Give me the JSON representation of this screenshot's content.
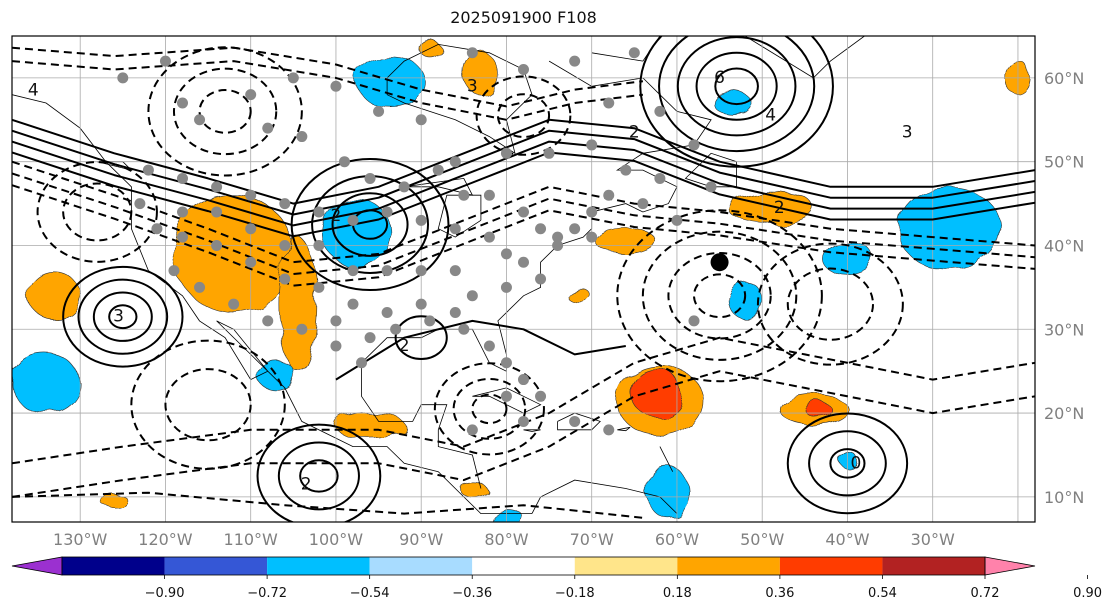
{
  "title": "2025091900 F108",
  "map": {
    "projection": "plate-carree",
    "lon_range": [
      -138,
      -18
    ],
    "lat_range": [
      7,
      65
    ],
    "longitude_labels": [
      {
        "lon": -130,
        "text": "130°W"
      },
      {
        "lon": -120,
        "text": "120°W"
      },
      {
        "lon": -110,
        "text": "110°W"
      },
      {
        "lon": -100,
        "text": "100°W"
      },
      {
        "lon": -90,
        "text": "90°W"
      },
      {
        "lon": -80,
        "text": "80°W"
      },
      {
        "lon": -70,
        "text": "70°W"
      },
      {
        "lon": -60,
        "text": "60°W"
      },
      {
        "lon": -50,
        "text": "50°W"
      },
      {
        "lon": -40,
        "text": "40°W"
      },
      {
        "lon": -30,
        "text": "30°W"
      }
    ],
    "latitude_labels": [
      {
        "lat": 60,
        "text": "60°N"
      },
      {
        "lat": 50,
        "text": "50°N"
      },
      {
        "lat": 40,
        "text": "40°N"
      },
      {
        "lat": 30,
        "text": "30°N"
      },
      {
        "lat": 20,
        "text": "20°N"
      },
      {
        "lat": 10,
        "text": "10°N"
      }
    ],
    "gridlines": true,
    "storm_marker": {
      "lon": -55,
      "lat": 38
    }
  },
  "colorbar": {
    "orientation": "horizontal",
    "extend": "both",
    "labels": [
      "−0.90",
      "−0.72",
      "−0.54",
      "−0.36",
      "−0.18",
      "0.18",
      "0.36",
      "0.54",
      "0.72",
      "0.90"
    ],
    "colors": [
      "#9b30d0",
      "#00008b",
      "#3557d6",
      "#00bfff",
      "#a8dcff",
      "#ffffff",
      "#ffe58a",
      "#ffa500",
      "#ff3c00",
      "#b22222",
      "#ff82ab"
    ]
  },
  "contour_labels": [
    {
      "text": "6",
      "lon": -55,
      "lat": 60
    },
    {
      "text": "4",
      "lon": -49,
      "lat": 55.5
    },
    {
      "text": "3",
      "lon": -33,
      "lat": 53.5
    },
    {
      "text": "2",
      "lon": -65,
      "lat": 53.5
    },
    {
      "text": "2",
      "lon": -48,
      "lat": 44.5
    },
    {
      "text": "3",
      "lon": -125.5,
      "lat": 31.5
    },
    {
      "text": "2",
      "lon": -103.5,
      "lat": 11.5
    },
    {
      "text": "0",
      "lon": -39,
      "lat": 14
    },
    {
      "text": "4",
      "lon": -135.5,
      "lat": 58.5
    },
    {
      "text": "3",
      "lon": -84,
      "lat": 59
    },
    {
      "text": "2",
      "lon": -100,
      "lat": 43.5
    },
    {
      "text": "2",
      "lon": -92,
      "lat": 28
    }
  ],
  "orange_regions": [
    {
      "cx": -112,
      "cy": 39,
      "rx": 7,
      "ry": 7
    },
    {
      "cx": -104.5,
      "cy": 33,
      "rx": 2.2,
      "ry": 8
    },
    {
      "cx": -62,
      "cy": 21.5,
      "rx": 5,
      "ry": 4.2
    },
    {
      "cx": -49,
      "cy": 44.5,
      "rx": 5,
      "ry": 2
    },
    {
      "cx": -66,
      "cy": 40.5,
      "rx": 3.5,
      "ry": 1.6
    },
    {
      "cx": -44,
      "cy": 20.5,
      "rx": 4,
      "ry": 1.8
    },
    {
      "cx": -96,
      "cy": 18.5,
      "rx": 4,
      "ry": 1.6
    },
    {
      "cx": -133,
      "cy": 34,
      "rx": 3,
      "ry": 2.8
    },
    {
      "cx": -83,
      "cy": 60.5,
      "rx": 2,
      "ry": 2.5
    },
    {
      "cx": -89,
      "cy": 63.5,
      "rx": 1.2,
      "ry": 1
    },
    {
      "cx": -126,
      "cy": 9.5,
      "rx": 1.6,
      "ry": 0.8
    },
    {
      "cx": -84,
      "cy": 11,
      "rx": 1.6,
      "ry": 0.8
    },
    {
      "cx": -71.5,
      "cy": 34,
      "rx": 1.4,
      "ry": 0.8
    },
    {
      "cx": -20,
      "cy": 60,
      "rx": 1.5,
      "ry": 2
    }
  ],
  "red_regions": [
    {
      "cx": -62.5,
      "cy": 22.5,
      "rx": 3,
      "ry": 2.8
    },
    {
      "cx": -43.5,
      "cy": 20.5,
      "rx": 1.6,
      "ry": 0.8
    }
  ],
  "blue_regions": [
    {
      "cx": -93.5,
      "cy": 59.5,
      "rx": 4,
      "ry": 3
    },
    {
      "cx": -97.5,
      "cy": 41.5,
      "rx": 4,
      "ry": 4
    },
    {
      "cx": -28,
      "cy": 42,
      "rx": 6,
      "ry": 5
    },
    {
      "cx": -40,
      "cy": 38.5,
      "rx": 3,
      "ry": 2
    },
    {
      "cx": -134,
      "cy": 23.5,
      "rx": 4,
      "ry": 3.5
    },
    {
      "cx": -107,
      "cy": 24.5,
      "rx": 2.2,
      "ry": 1.8
    },
    {
      "cx": -61,
      "cy": 10.5,
      "rx": 2.5,
      "ry": 3
    },
    {
      "cx": -52,
      "cy": 33.5,
      "rx": 2,
      "ry": 2.2
    },
    {
      "cx": -53.5,
      "cy": 57,
      "rx": 2.2,
      "ry": 1.4
    },
    {
      "cx": -80,
      "cy": 7.5,
      "rx": 2,
      "ry": 1
    },
    {
      "cx": -40,
      "cy": 14.5,
      "rx": 1,
      "ry": 1
    }
  ],
  "highs": [
    {
      "lon": -53,
      "lat": 59,
      "rings": 5,
      "r0": 2.5,
      "step": 2.2
    },
    {
      "lon": -125,
      "lat": 31.5,
      "rings": 4,
      "r0": 1.6,
      "step": 1.8
    },
    {
      "lon": -102,
      "lat": 12.5,
      "rings": 3,
      "r0": 2.2,
      "step": 2.5
    },
    {
      "lon": -96,
      "lat": 42.5,
      "rings": 4,
      "r0": 2,
      "step": 2.4
    },
    {
      "lon": -40,
      "lat": 14,
      "rings": 3,
      "r0": 2,
      "step": 2.5
    },
    {
      "lon": -90,
      "lat": 29,
      "rings": 1,
      "r0": 3,
      "step": 2
    }
  ],
  "lows": [
    {
      "lon": -55,
      "lat": 34,
      "rings": 4,
      "r0": 3,
      "step": 3
    },
    {
      "lon": -82,
      "lat": 20.5,
      "rings": 3,
      "r0": 2,
      "step": 2.2
    },
    {
      "lon": -42,
      "lat": 33,
      "rings": 2,
      "r0": 5,
      "step": 3.5
    },
    {
      "lon": -113,
      "lat": 56,
      "rings": 3,
      "r0": 3,
      "step": 3
    },
    {
      "lon": -78,
      "lat": 55.5,
      "rings": 2,
      "r0": 3,
      "step": 2.5
    },
    {
      "lon": -128,
      "lat": 44,
      "rings": 2,
      "r0": 4,
      "step": 3
    },
    {
      "lon": -115,
      "lat": 21,
      "rings": 2,
      "r0": 5,
      "step": 4
    }
  ],
  "stations": [
    [
      -120,
      62
    ],
    [
      -125,
      60
    ],
    [
      -118,
      57
    ],
    [
      -116,
      55
    ],
    [
      -108,
      54
    ],
    [
      -104,
      53
    ],
    [
      -99,
      50
    ],
    [
      -96,
      48
    ],
    [
      -92,
      47
    ],
    [
      -88,
      49
    ],
    [
      -85,
      46
    ],
    [
      -82,
      46
    ],
    [
      -78,
      44
    ],
    [
      -76,
      42
    ],
    [
      -74,
      41
    ],
    [
      -72,
      42
    ],
    [
      -70,
      44
    ],
    [
      -68,
      46
    ],
    [
      -66,
      49
    ],
    [
      -70,
      52
    ],
    [
      -75,
      51
    ],
    [
      -80,
      51
    ],
    [
      -86,
      50
    ],
    [
      -90,
      55
    ],
    [
      -95,
      56
    ],
    [
      -100,
      59
    ],
    [
      -105,
      60
    ],
    [
      -110,
      58
    ],
    [
      -84,
      63
    ],
    [
      -78,
      61
    ],
    [
      -72,
      62
    ],
    [
      -65,
      63
    ],
    [
      -68,
      57
    ],
    [
      -62,
      56
    ],
    [
      -58,
      52
    ],
    [
      -62,
      48
    ],
    [
      -64,
      45
    ],
    [
      -60,
      43
    ],
    [
      -56,
      47
    ],
    [
      -122,
      49
    ],
    [
      -118,
      48
    ],
    [
      -114,
      47
    ],
    [
      -110,
      46
    ],
    [
      -106,
      45
    ],
    [
      -102,
      44
    ],
    [
      -98,
      43
    ],
    [
      -94,
      44
    ],
    [
      -90,
      43
    ],
    [
      -86,
      42
    ],
    [
      -82,
      41
    ],
    [
      -80,
      39
    ],
    [
      -78,
      38
    ],
    [
      -76,
      36
    ],
    [
      -80,
      35
    ],
    [
      -84,
      34
    ],
    [
      -86,
      32
    ],
    [
      -90,
      33
    ],
    [
      -94,
      32
    ],
    [
      -98,
      33
    ],
    [
      -102,
      35
    ],
    [
      -106,
      36
    ],
    [
      -110,
      38
    ],
    [
      -114,
      40
    ],
    [
      -118,
      41
    ],
    [
      -121,
      42
    ],
    [
      -123,
      45
    ],
    [
      -119,
      37
    ],
    [
      -116,
      35
    ],
    [
      -112,
      33
    ],
    [
      -108,
      31
    ],
    [
      -104,
      30
    ],
    [
      -100,
      28
    ],
    [
      -97,
      26
    ],
    [
      -93,
      30
    ],
    [
      -89,
      31
    ],
    [
      -85,
      30
    ],
    [
      -82,
      28
    ],
    [
      -80,
      26
    ],
    [
      -78,
      24
    ],
    [
      -76,
      22
    ],
    [
      -80,
      22
    ],
    [
      -84,
      18
    ],
    [
      -78,
      19
    ],
    [
      -72,
      19
    ],
    [
      -68,
      18
    ],
    [
      -86,
      37
    ],
    [
      -90,
      37
    ],
    [
      -94,
      37
    ],
    [
      -98,
      37
    ],
    [
      -102,
      40
    ],
    [
      -106,
      40
    ],
    [
      -110,
      42
    ],
    [
      -114,
      44
    ],
    [
      -118,
      44
    ],
    [
      -58,
      31
    ],
    [
      -74,
      40
    ],
    [
      -70,
      41
    ],
    [
      -96,
      29
    ],
    [
      -100,
      31
    ]
  ]
}
